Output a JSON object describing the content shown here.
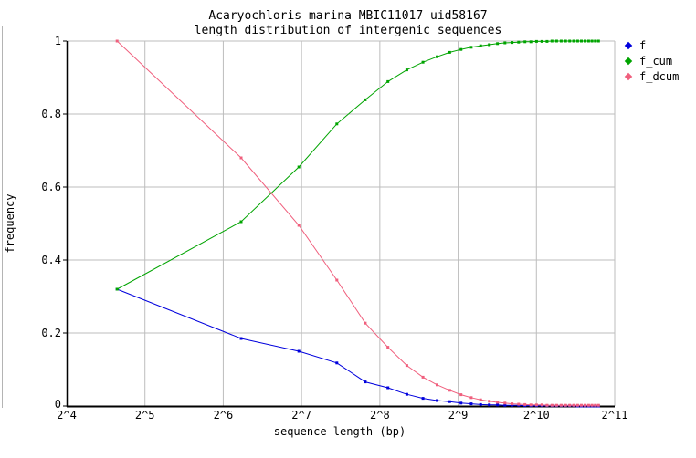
{
  "title": {
    "line1": "Acaryochloris marina MBIC11017 uid58167",
    "line2": "length distribution of intergenic sequences"
  },
  "axes": {
    "x_label": "sequence length (bp)",
    "y_label": "frequency"
  },
  "legend": [
    {
      "label": "f",
      "color": "#0000dd"
    },
    {
      "label": "f_cum",
      "color": "#00a400"
    },
    {
      "label": "f_dcum",
      "color": "#f05f7d"
    }
  ],
  "colors": {
    "grid": "#bdbdbd",
    "axis": "#000000",
    "background": "#ffffff",
    "screen_edge": "#b4b4b4"
  },
  "chart_data": {
    "type": "line",
    "title": "Acaryochloris marina MBIC11017 uid58167 — length distribution of intergenic sequences",
    "xlabel": "sequence length (bp)",
    "ylabel": "frequency",
    "x_scale": "log2",
    "xlim": [
      16,
      2048
    ],
    "ylim": [
      0,
      1
    ],
    "grid": true,
    "legend_position": "top-right",
    "x_ticks": [
      {
        "label": "2^4",
        "value": 16
      },
      {
        "label": "2^5",
        "value": 32
      },
      {
        "label": "2^6",
        "value": 64
      },
      {
        "label": "2^7",
        "value": 128
      },
      {
        "label": "2^8",
        "value": 256
      },
      {
        "label": "2^9",
        "value": 512
      },
      {
        "label": "2^10",
        "value": 1024
      },
      {
        "label": "2^11",
        "value": 2048
      }
    ],
    "y_ticks": [
      {
        "label": "0",
        "value": 0
      },
      {
        "label": "0.2",
        "value": 0.2
      },
      {
        "label": "0.4",
        "value": 0.4
      },
      {
        "label": "0.6",
        "value": 0.6
      },
      {
        "label": "0.8",
        "value": 0.8
      },
      {
        "label": "1",
        "value": 1
      }
    ],
    "x": [
      25,
      75,
      125,
      175,
      225,
      275,
      325,
      375,
      425,
      475,
      525,
      575,
      625,
      675,
      725,
      775,
      825,
      875,
      925,
      975,
      1025,
      1075,
      1125,
      1175,
      1225,
      1275,
      1325,
      1375,
      1425,
      1475,
      1525,
      1575,
      1625,
      1675,
      1725,
      1775
    ],
    "series": [
      {
        "name": "f",
        "color": "#0000dd",
        "values": [
          0.32,
          0.185,
          0.15,
          0.118,
          0.066,
          0.05,
          0.032,
          0.021,
          0.015,
          0.012,
          0.008,
          0.006,
          0.004,
          0.003,
          0.003,
          0.002,
          0.002,
          0.002,
          0.001,
          0.001,
          0.001,
          0.001,
          0.001,
          0.001,
          0.001,
          0.001,
          0.001,
          0.001,
          0.001,
          0.0,
          0.0,
          0.0,
          0.0,
          0.0,
          0.0,
          0.0
        ]
      },
      {
        "name": "f_cum",
        "color": "#00a400",
        "values": [
          0.32,
          0.505,
          0.655,
          0.773,
          0.839,
          0.889,
          0.921,
          0.942,
          0.957,
          0.969,
          0.977,
          0.983,
          0.987,
          0.99,
          0.993,
          0.995,
          0.996,
          0.997,
          0.998,
          0.998,
          0.999,
          0.999,
          0.999,
          1.0,
          1.0,
          1.0,
          1.0,
          1.0,
          1.0,
          1.0,
          1.0,
          1.0,
          1.0,
          1.0,
          1.0,
          1.0
        ]
      },
      {
        "name": "f_dcum",
        "color": "#f05f7d",
        "values": [
          1.0,
          0.68,
          0.495,
          0.345,
          0.227,
          0.161,
          0.111,
          0.079,
          0.058,
          0.043,
          0.031,
          0.023,
          0.017,
          0.013,
          0.01,
          0.008,
          0.006,
          0.005,
          0.004,
          0.003,
          0.003,
          0.003,
          0.002,
          0.002,
          0.002,
          0.002,
          0.002,
          0.002,
          0.002,
          0.002,
          0.002,
          0.002,
          0.002,
          0.002,
          0.002,
          0.002
        ]
      }
    ]
  }
}
